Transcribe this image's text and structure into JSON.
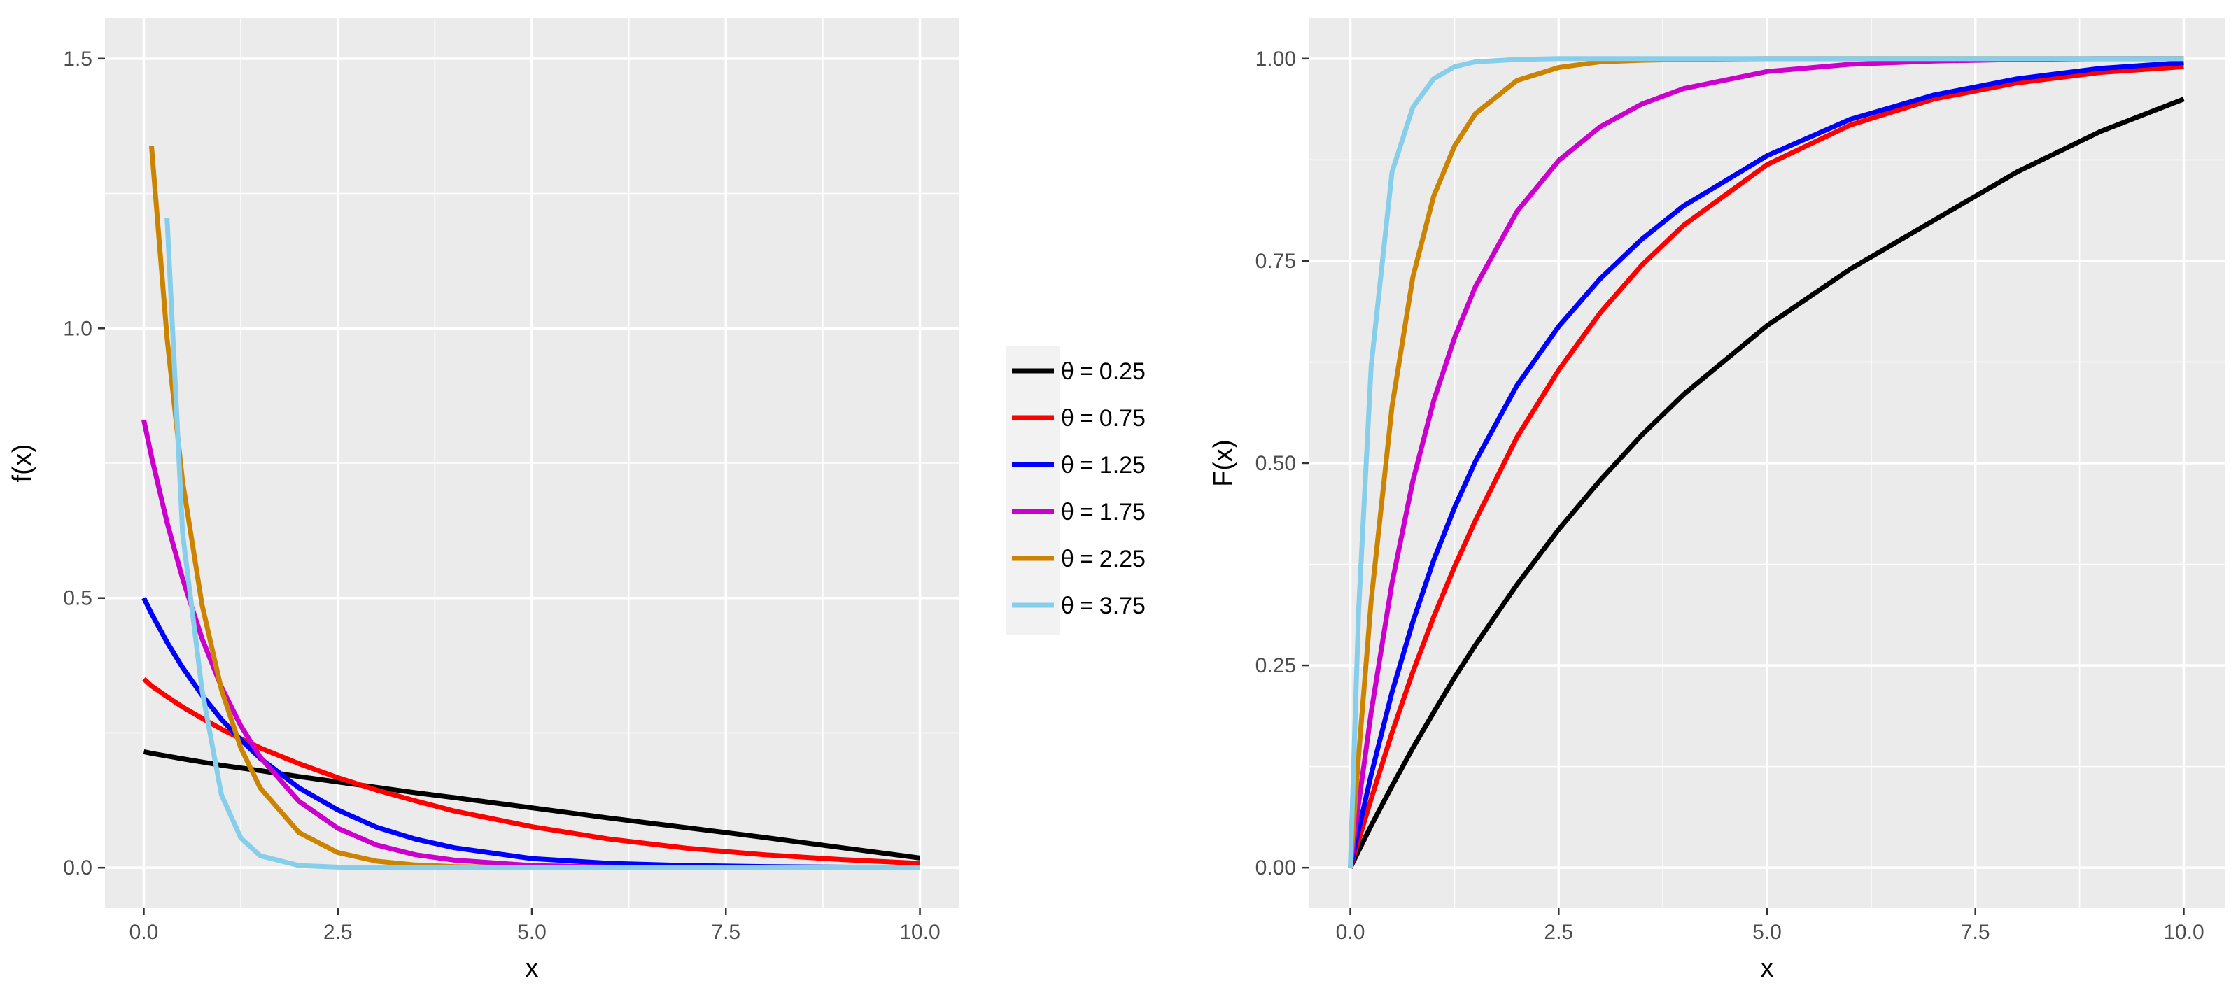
{
  "chart_data": [
    {
      "type": "line",
      "panel": "left",
      "title": "",
      "xlabel": "x",
      "ylabel": "f(x)",
      "xlim": [
        -0.5,
        10.5
      ],
      "ylim": [
        -0.075,
        1.575
      ],
      "x_ticks": [
        0.0,
        2.5,
        5.0,
        7.5,
        10.0
      ],
      "x_tick_labels": [
        "0.0",
        "2.5",
        "5.0",
        "7.5",
        "10.0"
      ],
      "y_ticks": [
        0.0,
        0.5,
        1.0,
        1.5
      ],
      "y_tick_labels": [
        "0.0",
        "0.5",
        "1.0",
        "1.5"
      ],
      "x_minor_ticks": [
        1.25,
        3.75,
        6.25,
        8.75
      ],
      "y_minor_ticks": [
        0.25,
        0.75,
        1.25
      ],
      "grid": true,
      "x": [
        0,
        0.1,
        0.3,
        0.5,
        0.75,
        1,
        1.25,
        1.5,
        2,
        2.5,
        3,
        3.5,
        4,
        5,
        6,
        7,
        8,
        9,
        10
      ],
      "series": [
        {
          "name": "θ = 0.25",
          "color": "#000000",
          "values": [
            0.215,
            0.212,
            0.207,
            0.202,
            0.196,
            0.19,
            0.185,
            0.18,
            0.169,
            0.159,
            0.149,
            0.139,
            0.13,
            0.111,
            0.092,
            0.074,
            0.056,
            0.037,
            0.018
          ]
        },
        {
          "name": "θ = 0.75",
          "color": "#ff0000",
          "values": [
            0.35,
            0.337,
            0.317,
            0.298,
            0.277,
            0.257,
            0.239,
            0.222,
            0.193,
            0.167,
            0.144,
            0.124,
            0.105,
            0.076,
            0.053,
            0.036,
            0.024,
            0.015,
            0.008
          ]
        },
        {
          "name": "θ = 1.25",
          "color": "#0000ff",
          "values": [
            0.5,
            0.471,
            0.418,
            0.371,
            0.32,
            0.275,
            0.237,
            0.203,
            0.148,
            0.107,
            0.075,
            0.053,
            0.037,
            0.017,
            0.008,
            0.004,
            0.002,
            0.001,
            0.0
          ]
        },
        {
          "name": "θ = 1.75",
          "color": "#cc00cc",
          "values": [
            0.83,
            0.762,
            0.64,
            0.536,
            0.425,
            0.335,
            0.263,
            0.205,
            0.123,
            0.073,
            0.042,
            0.024,
            0.014,
            0.004,
            0.001,
            0.0,
            0.0,
            0.0,
            0.0
          ]
        },
        {
          "name": "θ = 2.25",
          "color": "#cc8400",
          "values": [
            null,
            1.338,
            0.982,
            0.716,
            0.488,
            0.33,
            0.222,
            0.148,
            0.065,
            0.028,
            0.012,
            0.005,
            0.002,
            0.0,
            0.0,
            0.0,
            0.0,
            0.0,
            0.0
          ]
        },
        {
          "name": "θ = 3.75",
          "color": "#87ceeb",
          "values": [
            null,
            null,
            1.205,
            0.62,
            0.33,
            0.135,
            0.055,
            0.022,
            0.004,
            0.001,
            0.0,
            0.0,
            0.0,
            0.0,
            0.0,
            0.0,
            0.0,
            0.0,
            0.0
          ]
        }
      ]
    },
    {
      "type": "line",
      "panel": "right",
      "title": "",
      "xlabel": "x",
      "ylabel": "F(x)",
      "xlim": [
        -0.5,
        10.5
      ],
      "ylim": [
        -0.05,
        1.05
      ],
      "x_ticks": [
        0.0,
        2.5,
        5.0,
        7.5,
        10.0
      ],
      "x_tick_labels": [
        "0.0",
        "2.5",
        "5.0",
        "7.5",
        "10.0"
      ],
      "y_ticks": [
        0.0,
        0.25,
        0.5,
        0.75,
        1.0
      ],
      "y_tick_labels": [
        "0.00",
        "0.25",
        "0.50",
        "0.75",
        "1.00"
      ],
      "x_minor_ticks": [
        1.25,
        3.75,
        6.25,
        8.75
      ],
      "y_minor_ticks": [
        0.125,
        0.375,
        0.625,
        0.875
      ],
      "grid": true,
      "x": [
        0,
        0.1,
        0.25,
        0.5,
        0.75,
        1,
        1.25,
        1.5,
        2,
        2.5,
        3,
        3.5,
        4,
        5,
        6,
        7,
        8,
        9,
        10
      ],
      "series": [
        {
          "name": "θ = 0.25",
          "color": "#000000",
          "values": [
            0.0,
            0.021,
            0.052,
            0.101,
            0.148,
            0.192,
            0.235,
            0.275,
            0.35,
            0.418,
            0.479,
            0.535,
            0.585,
            0.67,
            0.74,
            0.8,
            0.86,
            0.91,
            0.95
          ]
        },
        {
          "name": "θ = 0.75",
          "color": "#ff0000",
          "values": [
            0.0,
            0.034,
            0.085,
            0.167,
            0.242,
            0.31,
            0.372,
            0.429,
            0.532,
            0.615,
            0.686,
            0.745,
            0.794,
            0.869,
            0.918,
            0.95,
            0.97,
            0.983,
            0.99
          ]
        },
        {
          "name": "θ = 1.25",
          "color": "#0000ff",
          "values": [
            0.0,
            0.047,
            0.115,
            0.217,
            0.304,
            0.38,
            0.445,
            0.502,
            0.596,
            0.669,
            0.728,
            0.777,
            0.818,
            0.88,
            0.925,
            0.955,
            0.975,
            0.988,
            0.995
          ]
        },
        {
          "name": "θ = 1.75",
          "color": "#cc00cc",
          "values": [
            0.0,
            0.08,
            0.192,
            0.352,
            0.478,
            0.577,
            0.655,
            0.718,
            0.811,
            0.874,
            0.916,
            0.944,
            0.963,
            0.984,
            0.993,
            0.997,
            0.999,
            1.0,
            1.0
          ]
        },
        {
          "name": "θ = 2.25",
          "color": "#cc8400",
          "values": [
            0.0,
            0.14,
            0.33,
            0.57,
            0.73,
            0.83,
            0.892,
            0.932,
            0.973,
            0.989,
            0.996,
            0.998,
            0.999,
            1.0,
            1.0,
            1.0,
            1.0,
            1.0,
            1.0
          ]
        },
        {
          "name": "θ = 3.75",
          "color": "#87ceeb",
          "values": [
            0.0,
            0.32,
            0.62,
            0.86,
            0.94,
            0.975,
            0.99,
            0.996,
            0.999,
            1.0,
            1.0,
            1.0,
            1.0,
            1.0,
            1.0,
            1.0,
            1.0,
            1.0,
            1.0
          ]
        }
      ]
    }
  ],
  "legend": {
    "placement": "between-panels",
    "entries": [
      {
        "symbol": "θ",
        "relation": "=",
        "value": "0.25",
        "color": "#000000"
      },
      {
        "symbol": "θ",
        "relation": "=",
        "value": "0.75",
        "color": "#ff0000"
      },
      {
        "symbol": "θ",
        "relation": "=",
        "value": "1.25",
        "color": "#0000ff"
      },
      {
        "symbol": "θ",
        "relation": "=",
        "value": "1.75",
        "color": "#cc00cc"
      },
      {
        "symbol": "θ",
        "relation": "=",
        "value": "2.25",
        "color": "#cc8400"
      },
      {
        "symbol": "θ",
        "relation": "=",
        "value": "3.75",
        "color": "#87ceeb"
      }
    ]
  }
}
